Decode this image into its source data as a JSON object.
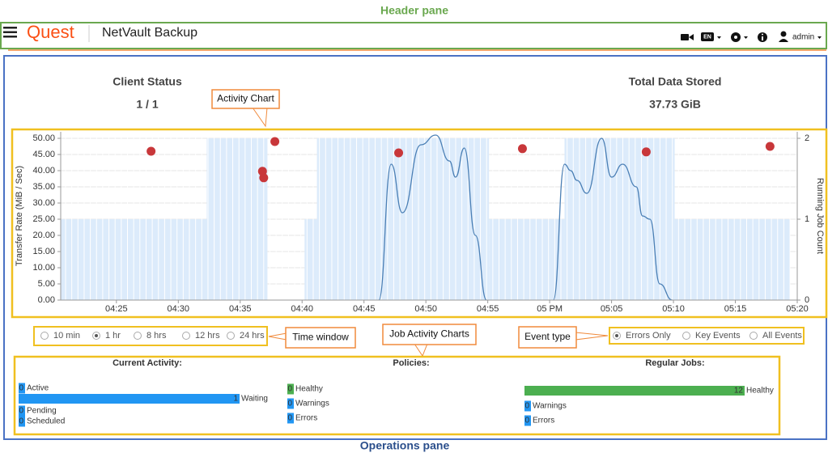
{
  "annotations": {
    "header_pane": "Header pane",
    "operations_pane": "Operations pane",
    "activity_chart": "Activity Chart",
    "time_window": "Time window",
    "job_activity_charts": "Job Activity Charts",
    "event_type": "Event type"
  },
  "header": {
    "logo": "Quest",
    "product": "NetVault Backup",
    "language": "EN",
    "user": "admin"
  },
  "status": {
    "client_label": "Client Status",
    "client_value": "1 / 1",
    "data_label": "Total Data Stored",
    "data_value": "37.73 GiB"
  },
  "chart_data": {
    "type": "combo",
    "ylabel": "Transfer Rate (MiB / Sec)",
    "y2label": "Running Job Count",
    "xlim": [
      20.5,
      80
    ],
    "xticks": [
      {
        "value": 25,
        "label": "04:25"
      },
      {
        "value": 30,
        "label": "04:30"
      },
      {
        "value": 35,
        "label": "04:35"
      },
      {
        "value": 40,
        "label": "04:40"
      },
      {
        "value": 45,
        "label": "04:45"
      },
      {
        "value": 50,
        "label": "04:50"
      },
      {
        "value": 55,
        "label": "04:55"
      },
      {
        "value": 60,
        "label": "05 PM"
      },
      {
        "value": 65,
        "label": "05:05"
      },
      {
        "value": 70,
        "label": "05:10"
      },
      {
        "value": 75,
        "label": "05:15"
      },
      {
        "value": 80,
        "label": "05:20"
      }
    ],
    "ylim": [
      0,
      52
    ],
    "yticks": [
      {
        "value": 0,
        "label": "0.00"
      },
      {
        "value": 5,
        "label": "5.00"
      },
      {
        "value": 10,
        "label": "10.00"
      },
      {
        "value": 15,
        "label": "15.00"
      },
      {
        "value": 20,
        "label": "20.00"
      },
      {
        "value": 25,
        "label": "25.00"
      },
      {
        "value": 30,
        "label": "30.00"
      },
      {
        "value": 35,
        "label": "35.00"
      },
      {
        "value": 40,
        "label": "40.00"
      },
      {
        "value": 45,
        "label": "45.00"
      },
      {
        "value": 50,
        "label": "50.00"
      }
    ],
    "y2lim": [
      0,
      2.08
    ],
    "y2ticks": [
      0,
      1,
      2
    ],
    "grid": true,
    "series": [
      {
        "type": "step",
        "axis": "y2",
        "color": "#dcebfb",
        "x": [
          20.5,
          32.3,
          37.2,
          40.2,
          41.2,
          55.1,
          61.2,
          70.1,
          79.4
        ],
        "values": [
          1,
          2,
          0,
          1,
          2,
          1,
          2,
          1,
          0
        ]
      },
      {
        "type": "line",
        "color": "#4a7fb5",
        "x": [
          46.2,
          47.2,
          48.1,
          49.6,
          50.8,
          51.9,
          52.4,
          53.1,
          54.0,
          54.9
        ],
        "values": [
          0,
          42,
          27,
          48,
          51,
          43,
          38,
          47,
          20,
          0
        ]
      },
      {
        "type": "line",
        "color": "#4a7fb5",
        "x": [
          60.3,
          61.2,
          61.7,
          62.2,
          63.0,
          64.2,
          65.0,
          65.9,
          67.0,
          67.5,
          68.1,
          68.9,
          69.9
        ],
        "values": [
          0,
          42,
          40,
          37,
          33,
          50,
          38,
          42,
          35,
          26,
          25,
          5,
          0
        ]
      },
      {
        "type": "scatter",
        "color": "#c8373a",
        "x": [
          27.8,
          36.8,
          36.9,
          37.8,
          47.8,
          57.8,
          67.8,
          77.8
        ],
        "values": [
          46,
          39.8,
          37.8,
          49,
          45.5,
          46.8,
          45.8,
          47.5
        ]
      }
    ]
  },
  "time_window": {
    "options": [
      "10 min",
      "1 hr",
      "8 hrs",
      "12 hrs",
      "24 hrs"
    ],
    "selected": 1
  },
  "event_type": {
    "options": [
      "Errors Only",
      "Key Events",
      "All Events"
    ],
    "selected": 0
  },
  "job_activity": {
    "groups": [
      {
        "title": "Current Activity:",
        "items": [
          {
            "label": "Active",
            "value": 0,
            "color": "#2196f3"
          },
          {
            "label": "Waiting",
            "value": 1,
            "color": "#2196f3"
          },
          {
            "label": "Pending",
            "value": 0,
            "color": "#2196f3"
          },
          {
            "label": "Scheduled",
            "value": 0,
            "color": "#2196f3"
          }
        ]
      },
      {
        "title": "Policies:",
        "items": [
          {
            "label": "Healthy",
            "value": 0,
            "color": "#4caf50"
          },
          {
            "label": "Warnings",
            "value": 0,
            "color": "#2196f3"
          },
          {
            "label": "Errors",
            "value": 0,
            "color": "#2196f3"
          }
        ]
      },
      {
        "title": "Regular Jobs:",
        "items": [
          {
            "label": "Healthy",
            "value": 12,
            "color": "#4caf50"
          },
          {
            "label": "Warnings",
            "value": 0,
            "color": "#2196f3"
          },
          {
            "label": "Errors",
            "value": 0,
            "color": "#2196f3"
          }
        ]
      }
    ]
  }
}
